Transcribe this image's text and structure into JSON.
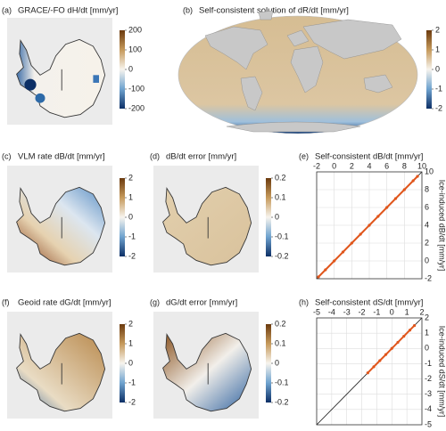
{
  "chart_data": [
    {
      "type": "map",
      "region": "antarctica",
      "label": "(a)",
      "title": "GRACE/-FO dH/dt [mm/yr]",
      "clim": [
        -200,
        200
      ],
      "cticks": [
        200,
        100,
        0,
        -100,
        -200
      ]
    },
    {
      "type": "map",
      "region": "world",
      "label": "(b)",
      "title": "Self-consistent solution of dR/dt [mm/yr]",
      "clim": [
        -2,
        2
      ],
      "cticks": [
        2,
        1,
        0,
        -1,
        -2
      ]
    },
    {
      "type": "map",
      "region": "antarctica",
      "label": "(c)",
      "title": "VLM rate dB/dt [mm/yr]",
      "clim": [
        -2,
        2
      ],
      "cticks": [
        2,
        1,
        0,
        -1,
        -2
      ]
    },
    {
      "type": "map",
      "region": "antarctica",
      "label": "(d)",
      "title": "dB/dt error [mm/yr]",
      "clim": [
        -0.2,
        0.2
      ],
      "cticks": [
        0.2,
        0.1,
        0,
        -0.1,
        -0.2
      ]
    },
    {
      "type": "scatter",
      "label": "(e)",
      "xlabel": "Self-consistent dB/dt [mm/yr]",
      "ylabel": "Ice-induced dB/dt [mm/yr]",
      "xlim": [
        -2,
        10
      ],
      "ylim": [
        -2,
        10
      ],
      "xticks": [
        -2,
        0,
        2,
        4,
        6,
        8,
        10
      ],
      "yticks": [
        -2,
        0,
        2,
        4,
        6,
        8,
        10
      ],
      "grid": true,
      "color": "#e0561c",
      "x": [
        -1.8,
        -1,
        0,
        1,
        2,
        3,
        4,
        5,
        6,
        7,
        8,
        9,
        9.5
      ],
      "y": [
        -1.8,
        -1,
        0,
        1,
        2,
        3,
        4,
        5,
        6,
        7,
        8,
        9,
        9.5
      ]
    },
    {
      "type": "map",
      "region": "antarctica",
      "label": "(f)",
      "title": "Geoid rate dG/dt [mm/yr]",
      "clim": [
        -2,
        2
      ],
      "cticks": [
        2,
        1,
        0,
        -1,
        -2
      ]
    },
    {
      "type": "map",
      "region": "antarctica",
      "label": "(g)",
      "title": "dG/dt error [mm/yr]",
      "clim": [
        -0.2,
        0.2
      ],
      "cticks": [
        0.2,
        0.1,
        0,
        -0.1,
        -0.2
      ]
    },
    {
      "type": "scatter",
      "label": "(h)",
      "xlabel": "Self-consistent dS/dt [mm/yr]",
      "ylabel": "Ice-induced dS/dt [mm/yr]",
      "xlim": [
        -5,
        2
      ],
      "ylim": [
        -5,
        2
      ],
      "xticks": [
        -5,
        -4,
        -3,
        -2,
        -1,
        0,
        1,
        2
      ],
      "yticks": [
        -5,
        -4,
        -3,
        -2,
        -1,
        0,
        1,
        2
      ],
      "grid": true,
      "color": "#e0561c",
      "x": [
        -1.6,
        -1.2,
        -0.8,
        -0.4,
        0,
        0.4,
        0.8,
        1.2,
        1.5
      ],
      "y": [
        -1.6,
        -1.2,
        -0.8,
        -0.4,
        0,
        0.4,
        0.8,
        1.2,
        1.5
      ]
    }
  ]
}
